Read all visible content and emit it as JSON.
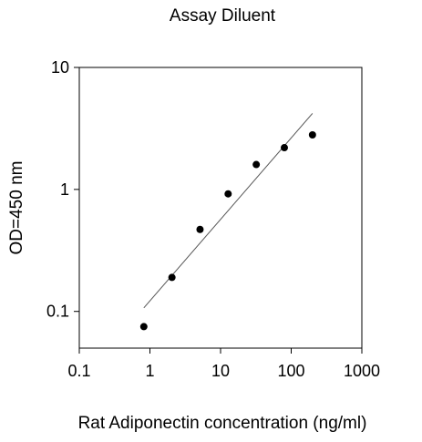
{
  "chart_data": {
    "type": "scatter",
    "title": "Assay Diluent",
    "xlabel": "Rat Adiponectin concentration (ng/ml)",
    "ylabel": "OD=450 nm",
    "x_scale": "log",
    "y_scale": "log",
    "xlim": [
      0.1,
      1000
    ],
    "ylim": [
      0.05,
      10
    ],
    "x_ticks": [
      "0.1",
      "1",
      "10",
      "100",
      "1000"
    ],
    "y_ticks": [
      "0.1",
      "1",
      "10"
    ],
    "grid": false,
    "series": [
      {
        "x": [
          0.82,
          2.05,
          5.12,
          12.8,
          32,
          80,
          200
        ],
        "y": [
          0.075,
          0.19,
          0.47,
          0.92,
          1.6,
          2.2,
          2.8
        ],
        "color": "#000000"
      }
    ],
    "fit_line": {
      "x": [
        0.82,
        200
      ],
      "y": [
        0.107,
        4.2
      ],
      "color": "#555555"
    }
  }
}
